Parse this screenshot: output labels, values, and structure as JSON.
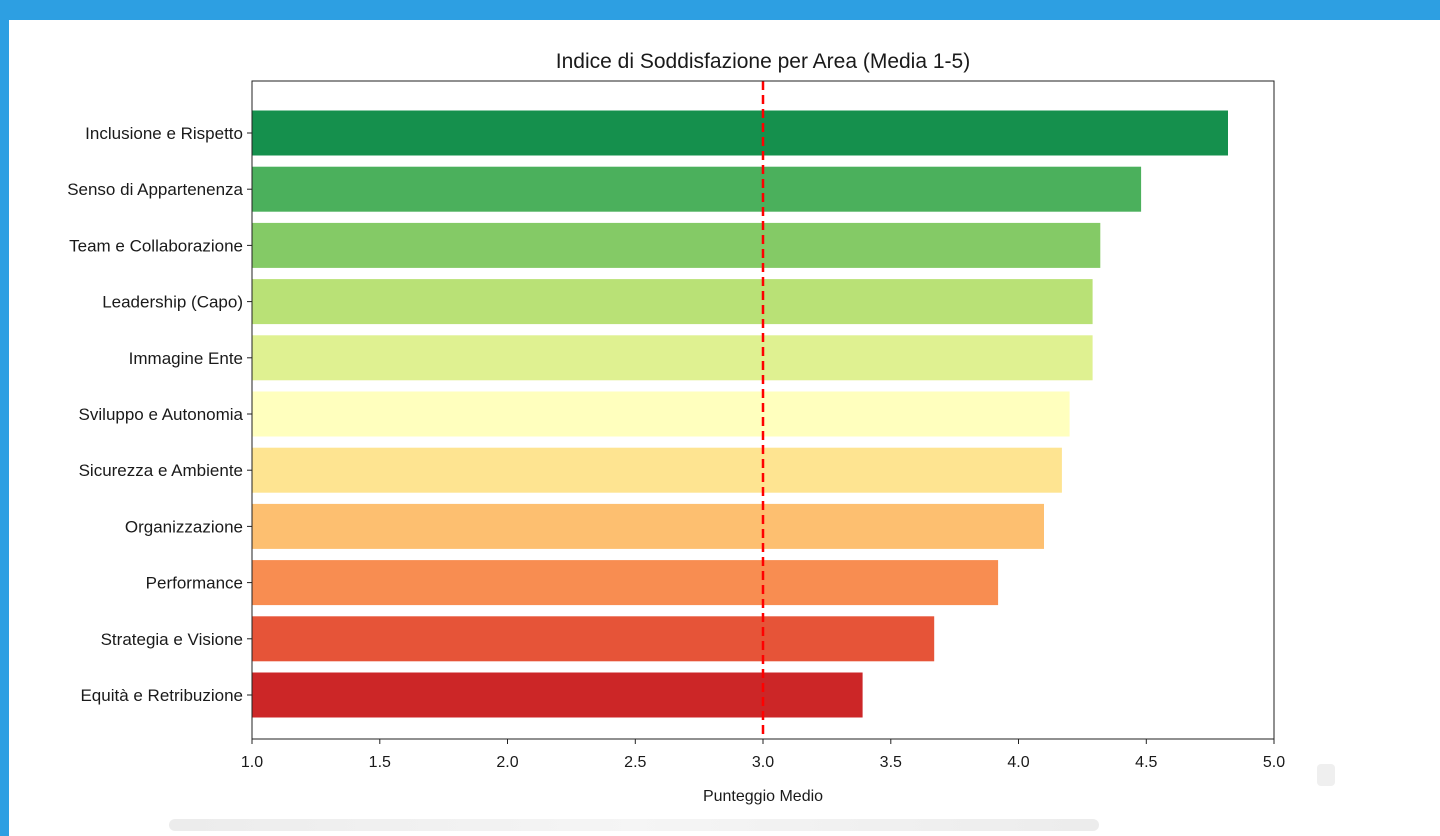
{
  "chart_data": {
    "type": "bar",
    "orientation": "horizontal",
    "title": "Indice di Soddisfazione per Area (Media 1-5)",
    "xlabel": "Punteggio Medio",
    "ylabel": "",
    "xlim": [
      1.0,
      5.0
    ],
    "xticks": [
      "1.0",
      "1.5",
      "2.0",
      "2.5",
      "3.0",
      "3.5",
      "4.0",
      "4.5",
      "5.0"
    ],
    "categories": [
      "Inclusione e Rispetto",
      "Senso di Appartenenza",
      "Team e Collaborazione",
      "Leadership (Capo)",
      "Immagine Ente",
      "Sviluppo e Autonomia",
      "Sicurezza e Ambiente",
      "Organizzazione",
      "Performance",
      "Strategia e Visione",
      "Equità e Retribuzione"
    ],
    "values": [
      4.82,
      4.48,
      4.32,
      4.29,
      4.29,
      4.2,
      4.17,
      4.1,
      3.92,
      3.67,
      3.39
    ],
    "colors": [
      "#15904d",
      "#4bb05c",
      "#84ca66",
      "#b9e176",
      "#dff191",
      "#ffffbe",
      "#fee491",
      "#fdbf70",
      "#f88d51",
      "#e65438",
      "#cc2627"
    ],
    "reference_line": {
      "x": 3.0,
      "color": "#ff0000",
      "style": "dashed"
    },
    "grid": false
  }
}
